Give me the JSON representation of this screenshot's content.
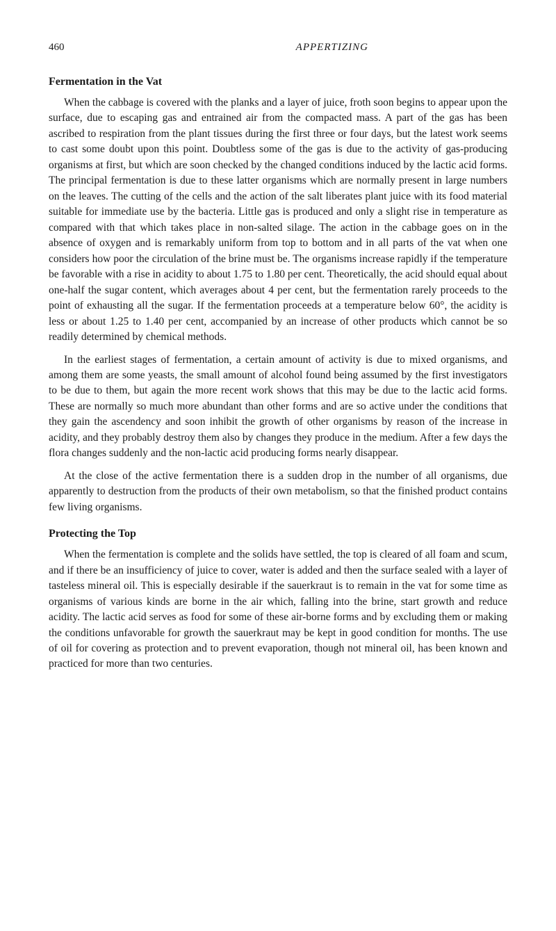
{
  "header": {
    "page_number": "460",
    "running_title": "APPERTIZING"
  },
  "sections": [
    {
      "heading": "Fermentation in the Vat",
      "paragraphs": [
        "When the cabbage is covered with the planks and a layer of juice, froth soon begins to appear upon the surface, due to escaping gas and entrained air from the compacted mass. A part of the gas has been ascribed to respiration from the plant tissues during the first three or four days, but the latest work seems to cast some doubt upon this point. Doubtless some of the gas is due to the activity of gas-producing organisms at first, but which are soon checked by the changed conditions induced by the lactic acid forms. The principal fermentation is due to these latter organisms which are normally present in large numbers on the leaves. The cutting of the cells and the action of the salt liberates plant juice with its food material suitable for immediate use by the bacteria. Little gas is produced and only a slight rise in temperature as compared with that which takes place in non-salted silage. The action in the cabbage goes on in the absence of oxygen and is remarkably uniform from top to bottom and in all parts of the vat when one considers how poor the circulation of the brine must be. The organisms increase rapidly if the temperature be favorable with a rise in acidity to about 1.75 to 1.80 per cent. Theoretically, the acid should equal about one-half the sugar content, which averages about 4 per cent, but the fermentation rarely proceeds to the point of exhausting all the sugar. If the fermentation proceeds at a temperature below 60°, the acidity is less or about 1.25 to 1.40 per cent, accompanied by an increase of other products which cannot be so readily determined by chemical methods.",
        "In the earliest stages of fermentation, a certain amount of activity is due to mixed organisms, and among them are some yeasts, the small amount of alcohol found being assumed by the first investigators to be due to them, but again the more recent work shows that this may be due to the lactic acid forms. These are normally so much more abundant than other forms and are so active under the conditions that they gain the ascendency and soon inhibit the growth of other organisms by reason of the increase in acidity, and they probably destroy them also by changes they produce in the medium. After a few days the flora changes suddenly and the non-lactic acid producing forms nearly disappear.",
        "At the close of the active fermentation there is a sudden drop in the number of all organisms, due apparently to destruction from the products of their own metabolism, so that the finished product contains few living organisms."
      ]
    },
    {
      "heading": "Protecting the Top",
      "paragraphs": [
        "When the fermentation is complete and the solids have settled, the top is cleared of all foam and scum, and if there be an insufficiency of juice to cover, water is added and then the surface sealed with a layer of tasteless mineral oil. This is especially desirable if the sauerkraut is to remain in the vat for some time as organisms of various kinds are borne in the air which, falling into the brine, start growth and reduce acidity. The lactic acid serves as food for some of these air-borne forms and by excluding them or making the conditions unfavorable for growth the sauerkraut may be kept in good condition for months. The use of oil for covering as protection and to prevent evaporation, though not mineral oil, has been known and practiced for more than two centuries."
      ]
    }
  ]
}
